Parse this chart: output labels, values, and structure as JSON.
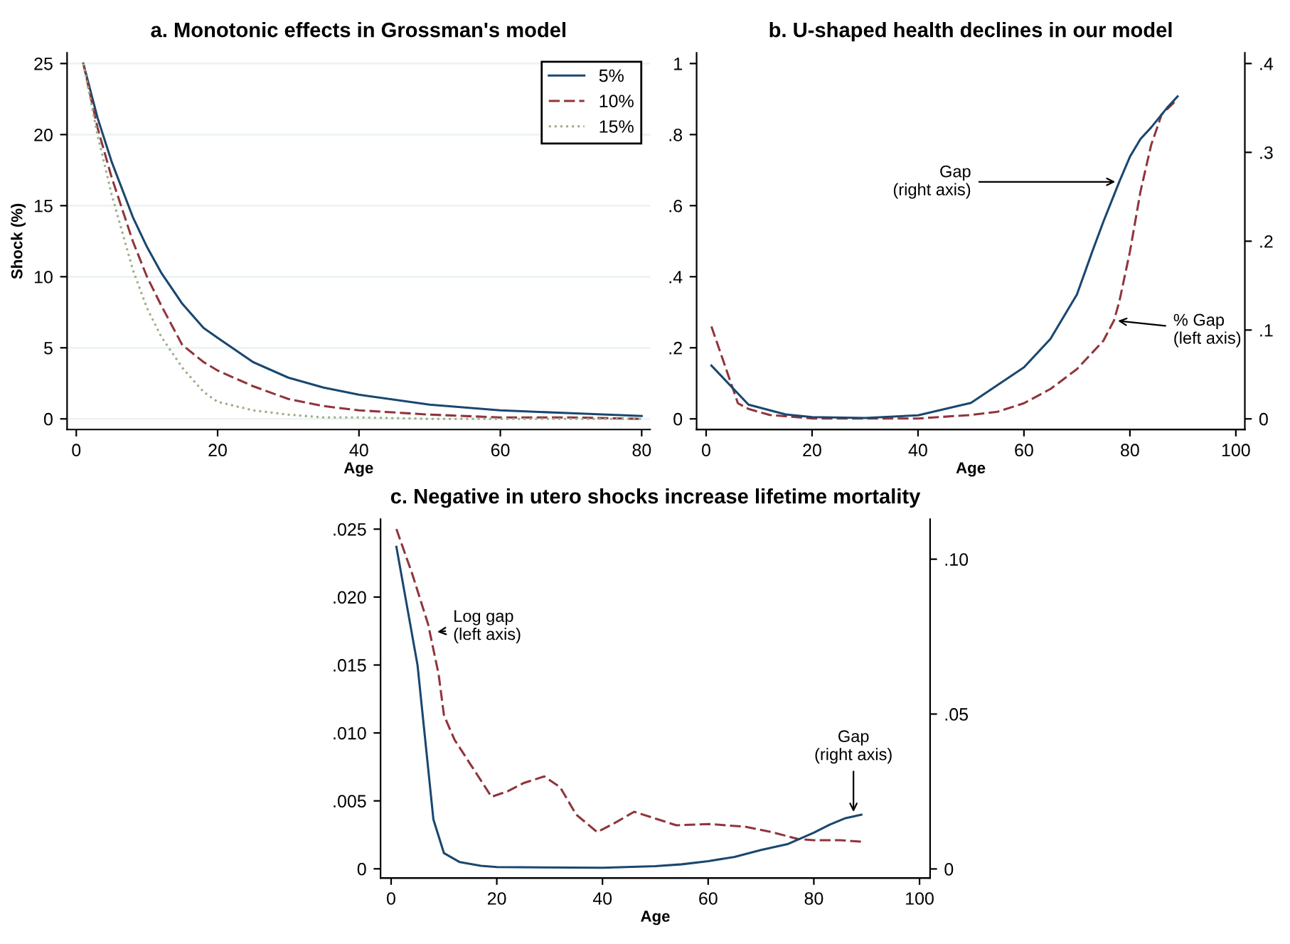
{
  "chart_data": [
    {
      "type": "line",
      "title": "a. Monotonic effects in Grossman's model",
      "xlabel": "Age",
      "ylabel": "Shock (%)",
      "xlim": [
        -1.3,
        81.2
      ],
      "ylim": [
        -0.75,
        25.75
      ],
      "xticks": [
        0,
        20,
        40,
        60,
        80
      ],
      "yticks": [
        0,
        5,
        10,
        15,
        20,
        25
      ],
      "grid": "y",
      "legend": "top right",
      "series": [
        {
          "name": "5%",
          "color": "#1a476f",
          "line_style": "solid",
          "x": [
            1,
            3,
            5,
            8,
            10,
            12,
            15,
            18,
            20,
            25,
            30,
            35,
            40,
            50,
            60,
            70,
            80
          ],
          "values": [
            25,
            21.2,
            18.1,
            14.2,
            12.1,
            10.3,
            8.1,
            6.4,
            5.7,
            4.0,
            2.9,
            2.2,
            1.7,
            1.0,
            0.6,
            0.4,
            0.2
          ]
        },
        {
          "name": "10%",
          "color": "#90353b",
          "line_style": "dashed",
          "x": [
            1,
            3,
            5,
            8,
            10,
            12,
            15,
            18,
            20,
            25,
            30,
            35,
            40,
            50,
            60,
            70,
            80
          ],
          "values": [
            25,
            20.5,
            17,
            12.5,
            10,
            8.0,
            5.2,
            4.0,
            3.4,
            2.3,
            1.4,
            0.9,
            0.6,
            0.3,
            0.1,
            0.1,
            0
          ]
        },
        {
          "name": "15%",
          "color": "#9cae88",
          "line_style": "dotted",
          "x": [
            1,
            3,
            5,
            8,
            10,
            12,
            15,
            18,
            20,
            25,
            30,
            35,
            40,
            50,
            60,
            70,
            80
          ],
          "values": [
            25,
            20,
            15.8,
            10.5,
            7.8,
            5.8,
            3.6,
            1.9,
            1.2,
            0.6,
            0.3,
            0.1,
            0.1,
            0,
            0,
            0,
            0
          ]
        }
      ]
    },
    {
      "type": "line",
      "title": "b. U-shaped health declines in our model",
      "xlabel": "Age",
      "xlim": [
        -1.8,
        101.7
      ],
      "ylim": [
        -0.03,
        1.03
      ],
      "y2lim": [
        -0.012,
        0.412
      ],
      "xticks": [
        0,
        20,
        40,
        60,
        80,
        100
      ],
      "yticks": [
        0,
        {
          "value": 0.2,
          "label": ".2"
        },
        {
          "value": 0.4,
          "label": ".4"
        },
        {
          "value": 0.6,
          "label": ".6"
        },
        {
          "value": 0.8,
          "label": ".8"
        },
        1
      ],
      "y2ticks": [
        0,
        {
          "value": 0.1,
          "label": ".1"
        },
        {
          "value": 0.2,
          "label": ".2"
        },
        {
          "value": 0.3,
          "label": ".3"
        },
        {
          "value": 0.4,
          "label": ".4"
        }
      ],
      "grid": false,
      "legend": false,
      "annotations": [
        {
          "text": "Gap\n(right axis)",
          "x": 78,
          "y": 0.667
        },
        {
          "text": "% Gap\n(left axis)",
          "x": 77,
          "y": 0.277
        }
      ],
      "series": [
        {
          "color": "#1a476f",
          "line_style": "solid",
          "axis": "y2",
          "x": [
            1,
            8,
            15,
            20,
            30,
            40,
            50,
            60,
            65,
            70,
            73,
            75,
            78,
            80,
            82,
            84,
            87,
            89
          ],
          "values": [
            0.06,
            0.016,
            0.005,
            0.002,
            0.001,
            0.004,
            0.018,
            0.058,
            0.09,
            0.14,
            0.19,
            0.222,
            0.267,
            0.295,
            0.315,
            0.328,
            0.35,
            0.363
          ]
        },
        {
          "color": "#90353b",
          "line_style": "dashed",
          "x": [
            1,
            6,
            8,
            12,
            20,
            40,
            50,
            55,
            60,
            65,
            70,
            75,
            77,
            78,
            80,
            82,
            84,
            86,
            89
          ],
          "values": [
            0.26,
            0.044,
            0.028,
            0.011,
            0.001,
            0.001,
            0.011,
            0.02,
            0.044,
            0.084,
            0.14,
            0.22,
            0.277,
            0.33,
            0.47,
            0.64,
            0.77,
            0.857,
            0.9
          ]
        }
      ]
    },
    {
      "type": "line",
      "title": "c. Negative in utero shocks increase lifetime mortality",
      "xlabel": "Age",
      "xlim": [
        -2,
        102
      ],
      "ylim": [
        -0.00067,
        0.02573
      ],
      "y2lim": [
        -0.0029,
        0.1129
      ],
      "xticks": [
        0,
        20,
        40,
        60,
        80,
        100
      ],
      "yticks": [
        0,
        {
          "value": 0.005,
          "label": ".005"
        },
        {
          "value": 0.01,
          "label": ".010"
        },
        {
          "value": 0.015,
          "label": ".015"
        },
        {
          "value": 0.02,
          "label": ".020"
        },
        {
          "value": 0.025,
          "label": ".025"
        }
      ],
      "y2ticks": [
        0,
        {
          "value": 0.05,
          "label": ".05"
        },
        {
          "value": 0.1,
          "label": ".10"
        }
      ],
      "grid": false,
      "legend": false,
      "annotations": [
        {
          "text": "Log gap\n(left axis)",
          "x": 8,
          "y": 0.0174
        },
        {
          "text": "Gap\n(right axis)",
          "x": 87.5,
          "y": 0.0039
        }
      ],
      "series": [
        {
          "color": "#1a476f",
          "line_style": "solid",
          "axis": "y2",
          "x": [
            1,
            5,
            8,
            10,
            13,
            17,
            20,
            40,
            50,
            55,
            60,
            65,
            70,
            75,
            80,
            83,
            86,
            89
          ],
          "values": [
            0.104,
            0.0658,
            0.016,
            0.0051,
            0.0022,
            0.001,
            0.0006,
            0.0004,
            0.0009,
            0.0015,
            0.0025,
            0.0039,
            0.0061,
            0.008,
            0.0117,
            0.0143,
            0.0164,
            0.0175
          ]
        },
        {
          "color": "#90353b",
          "line_style": "dashed",
          "x": [
            1,
            4,
            7,
            9,
            10,
            12,
            15,
            19,
            22,
            25,
            29,
            32,
            35,
            39,
            42,
            46,
            50,
            54,
            60,
            67,
            72,
            77,
            80,
            85,
            89
          ],
          "values": [
            0.025,
            0.0217,
            0.018,
            0.0143,
            0.0113,
            0.0095,
            0.0077,
            0.0053,
            0.0057,
            0.0063,
            0.0068,
            0.006,
            0.004,
            0.0027,
            0.0033,
            0.0042,
            0.0037,
            0.0032,
            0.0033,
            0.0031,
            0.0027,
            0.0022,
            0.0021,
            0.0021,
            0.002
          ]
        }
      ]
    }
  ]
}
